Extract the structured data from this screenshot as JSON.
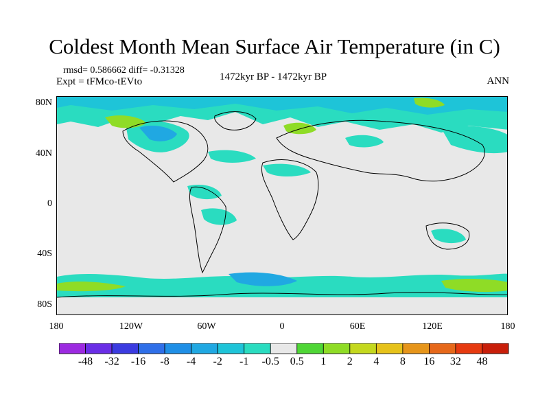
{
  "title": "Coldest Month Mean Surface Air Temperature (in C)",
  "stats": "rmsd= 0.586662 diff= -0.31328",
  "experiment": "Expt = tFMco-tEVto",
  "period": "1472kyr BP - 1472kyr BP",
  "season": "ANN",
  "lat_labels": [
    "80N",
    "40N",
    "0",
    "40S",
    "80S"
  ],
  "lon_labels": [
    "180",
    "120W",
    "60W",
    "0",
    "60E",
    "120E",
    "180"
  ],
  "colorbar": {
    "labels": [
      "-48",
      "-32",
      "-16",
      "-8",
      "-4",
      "-2",
      "-1",
      "-0.5",
      "0.5",
      "1",
      "2",
      "4",
      "8",
      "16",
      "32",
      "48"
    ],
    "colors": [
      "#9c2ae0",
      "#6a2ee6",
      "#3b3be0",
      "#2f6fe8",
      "#1f8fe6",
      "#20a8e2",
      "#1ec4d8",
      "#2adcc0",
      "#e8e8e8",
      "#4fd636",
      "#8fdc26",
      "#c4d81e",
      "#e6c21a",
      "#e6951a",
      "#e6681a",
      "#e63a10",
      "#c81e0a"
    ]
  },
  "colors": {
    "ocean_land_neutral": "#e8e8e8",
    "cool_light": "#2adcc0",
    "cool_mid": "#1ec4d8",
    "cool_deep": "#20a8e2",
    "warm_light": "#4fd636",
    "warm_mid": "#8fdc26"
  }
}
